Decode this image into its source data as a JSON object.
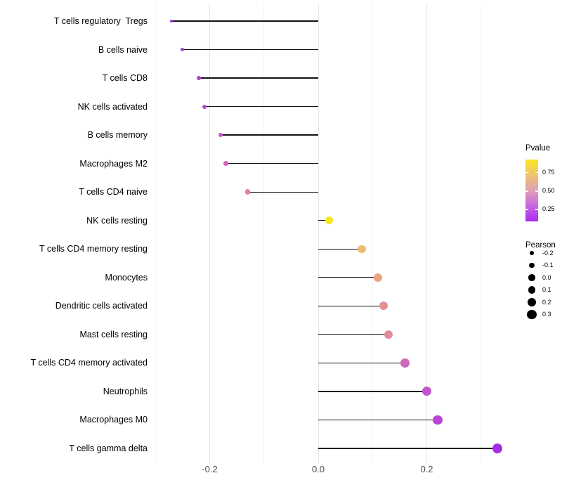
{
  "chart_data": {
    "type": "scatter",
    "subtype": "lollipop",
    "title": "",
    "xlabel": "",
    "ylabel": "",
    "categories": [
      "T cells regulatory  Tregs",
      "B cells naive",
      "T cells CD8",
      "NK cells activated",
      "B cells memory",
      "Macrophages M2",
      "T cells CD4 naive",
      "NK cells resting",
      "T cells CD4 memory resting",
      "Monocytes",
      "Dendritic cells activated",
      "Mast cells resting",
      "T cells CD4 memory activated",
      "Neutrophils",
      "Macrophages M0",
      "T cells gamma delta"
    ],
    "values": [
      -0.27,
      -0.25,
      -0.22,
      -0.21,
      -0.18,
      -0.17,
      -0.13,
      0.02,
      0.08,
      0.11,
      0.12,
      0.13,
      0.16,
      0.2,
      0.22,
      0.33
    ],
    "point_colors": [
      "#9b33d1",
      "#a73bd3",
      "#b144d3",
      "#b848d2",
      "#ca59c5",
      "#cf67b7",
      "#e18490",
      "#f6e71c",
      "#eeba72",
      "#eba47e",
      "#e58f93",
      "#e28c9c",
      "#d06ab8",
      "#c553cb",
      "#bb43d7",
      "#a62ce4"
    ],
    "baseline": 0.0,
    "xlim": [
      -0.3,
      0.36
    ],
    "x_ticks": [
      -0.2,
      0.0,
      0.2
    ],
    "x_tick_labels": [
      "-0.2",
      "0.0",
      "0.2"
    ],
    "x_minor_ticks": [
      -0.3,
      -0.1,
      0.1,
      0.3
    ],
    "grid": "vertical major and minor gridlines only, no horizontal grid, no axis lines",
    "legend_position": "right",
    "legends": {
      "pvalue": {
        "title": "Pvalue",
        "tick_labels": [
          "0.75",
          "0.50",
          "0.25"
        ],
        "gradient_top_to_bottom": [
          "#f9e721",
          "#efc36f",
          "#dfa0b4",
          "#c965e3",
          "#a82cf0"
        ]
      },
      "pearson": {
        "title": "Pearson",
        "labels": [
          "-0.2",
          "-0.1",
          "0.0",
          "0.1",
          "0.2",
          "0.3"
        ],
        "values": [
          -0.2,
          -0.1,
          0.0,
          0.1,
          0.2,
          0.3
        ],
        "dot_color": "#000000"
      }
    },
    "colors": {
      "background": "#ffffff",
      "stem": "#121212",
      "major_grid": "#e7e7e7",
      "minor_grid": "#f4f4f4",
      "axis_text": "#4d4d4d",
      "label_text": "#000000"
    }
  }
}
